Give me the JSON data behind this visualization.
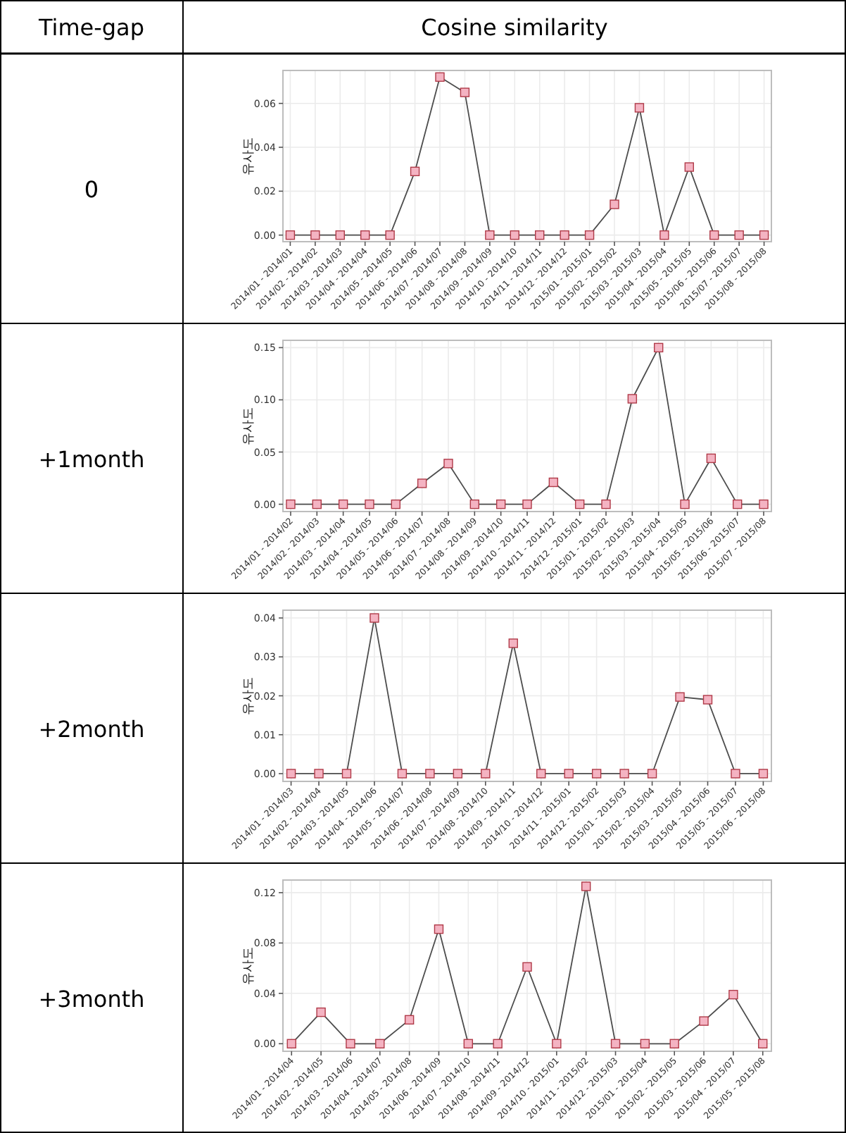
{
  "chart_data": [
    {
      "type": "line",
      "ylabel": "유사도",
      "annotations": [
        "Time-gap",
        "Cosine similarity",
        "0"
      ],
      "grid": true,
      "marker": "square",
      "line_style": "solid",
      "categories": [
        "2014/01 - 2014/01",
        "2014/02 - 2014/02",
        "2014/03 - 2014/03",
        "2014/04 - 2014/04",
        "2014/05 - 2014/05",
        "2014/06 - 2014/06",
        "2014/07 - 2014/07",
        "2014/08 - 2014/08",
        "2014/09 - 2014/09",
        "2014/10 - 2014/10",
        "2014/11 - 2014/11",
        "2014/12 - 2014/12",
        "2015/01 - 2015/01",
        "2015/02 - 2015/02",
        "2015/03 - 2015/03",
        "2015/04 - 2015/04",
        "2015/05 - 2015/05",
        "2015/06 - 2015/06",
        "2015/07 - 2015/07",
        "2015/08 - 2015/08"
      ],
      "series": [
        {
          "color": "#f4b3c2",
          "values": [
            0,
            0,
            0,
            0,
            0,
            0.029,
            0.072,
            0.065,
            0,
            0,
            0,
            0,
            0,
            0.014,
            0.058,
            0,
            0.031,
            0,
            0,
            0
          ]
        }
      ],
      "ylim": [
        -0.003,
        0.075
      ],
      "yticks": [
        {
          "value": 0,
          "label": "0.00"
        },
        {
          "value": 0.02,
          "label": "0.02"
        },
        {
          "value": 0.04,
          "label": "0.04"
        },
        {
          "value": 0.06,
          "label": "0.06"
        }
      ]
    },
    {
      "type": "line",
      "ylabel": "유사도",
      "annotations": [
        "+1month"
      ],
      "grid": true,
      "marker": "square",
      "line_style": "solid",
      "categories": [
        "2014/01 - 2014/02",
        "2014/02 - 2014/03",
        "2014/03 - 2014/04",
        "2014/04 - 2014/05",
        "2014/05 - 2014/06",
        "2014/06 - 2014/07",
        "2014/07 - 2014/08",
        "2014/08 - 2014/09",
        "2014/09 - 2014/10",
        "2014/10 - 2014/11",
        "2014/11 - 2014/12",
        "2014/12 - 2015/01",
        "2015/01 - 2015/02",
        "2015/02 - 2015/03",
        "2015/03 - 2015/04",
        "2015/04 - 2015/05",
        "2015/05 - 2015/06",
        "2015/06 - 2015/07",
        "2015/07 - 2015/08"
      ],
      "series": [
        {
          "color": "#f4b3c2",
          "values": [
            0,
            0,
            0,
            0,
            0,
            0.02,
            0.039,
            0,
            0,
            0,
            0.021,
            0,
            0,
            0.101,
            0.15,
            0,
            0.044,
            0,
            0
          ]
        }
      ],
      "ylim": [
        -0.007,
        0.157
      ],
      "yticks": [
        {
          "value": 0,
          "label": "0.00"
        },
        {
          "value": 0.05,
          "label": "0.05"
        },
        {
          "value": 0.1,
          "label": "0.10"
        },
        {
          "value": 0.15,
          "label": "0.15"
        }
      ]
    },
    {
      "type": "line",
      "ylabel": "유사도",
      "annotations": [
        "+2month"
      ],
      "grid": true,
      "marker": "square",
      "line_style": "solid",
      "categories": [
        "2014/01 - 2014/03",
        "2014/02 - 2014/04",
        "2014/03 - 2014/05",
        "2014/04 - 2014/06",
        "2014/05 - 2014/07",
        "2014/06 - 2014/08",
        "2014/07 - 2014/09",
        "2014/08 - 2014/10",
        "2014/09 - 2014/11",
        "2014/10 - 2014/12",
        "2014/11 - 2015/01",
        "2014/12 - 2015/02",
        "2015/01 - 2015/03",
        "2015/02 - 2015/04",
        "2015/03 - 2015/05",
        "2015/04 - 2015/06",
        "2015/05 - 2015/07",
        "2015/06 - 2015/08"
      ],
      "series": [
        {
          "color": "#f4b3c2",
          "values": [
            0,
            0,
            0,
            0.04,
            0,
            0,
            0,
            0,
            0.0335,
            0,
            0,
            0,
            0,
            0,
            0.0197,
            0.019,
            0,
            0
          ]
        }
      ],
      "ylim": [
        -0.002,
        0.042
      ],
      "yticks": [
        {
          "value": 0,
          "label": "0.00"
        },
        {
          "value": 0.01,
          "label": "0.01"
        },
        {
          "value": 0.02,
          "label": "0.02"
        },
        {
          "value": 0.03,
          "label": "0.03"
        },
        {
          "value": 0.04,
          "label": "0.04"
        }
      ]
    },
    {
      "type": "line",
      "ylabel": "유사도",
      "annotations": [
        "+3month"
      ],
      "grid": true,
      "marker": "square",
      "line_style": "solid",
      "categories": [
        "2014/01 - 2014/04",
        "2014/02 - 2014/05",
        "2014/03 - 2014/06",
        "2014/04 - 2014/07",
        "2014/05 - 2014/08",
        "2014/06 - 2014/09",
        "2014/07 - 2014/10",
        "2014/08 - 2014/11",
        "2014/09 - 2014/12",
        "2014/10 - 2015/01",
        "2014/11 - 2015/02",
        "2014/12 - 2015/03",
        "2015/01 - 2015/04",
        "2015/02 - 2015/05",
        "2015/03 - 2015/06",
        "2015/04 - 2015/07",
        "2015/05 - 2015/08"
      ],
      "series": [
        {
          "color": "#f4b3c2",
          "values": [
            0,
            0.025,
            0,
            0,
            0.019,
            0.091,
            0,
            0,
            0.061,
            0,
            0.125,
            0,
            0,
            0,
            0.018,
            0.039,
            0
          ]
        }
      ],
      "ylim": [
        -0.006,
        0.13
      ],
      "yticks": [
        {
          "value": 0,
          "label": "0.00"
        },
        {
          "value": 0.04,
          "label": "0.04"
        },
        {
          "value": 0.08,
          "label": "0.08"
        },
        {
          "value": 0.12,
          "label": "0.12"
        }
      ]
    }
  ]
}
